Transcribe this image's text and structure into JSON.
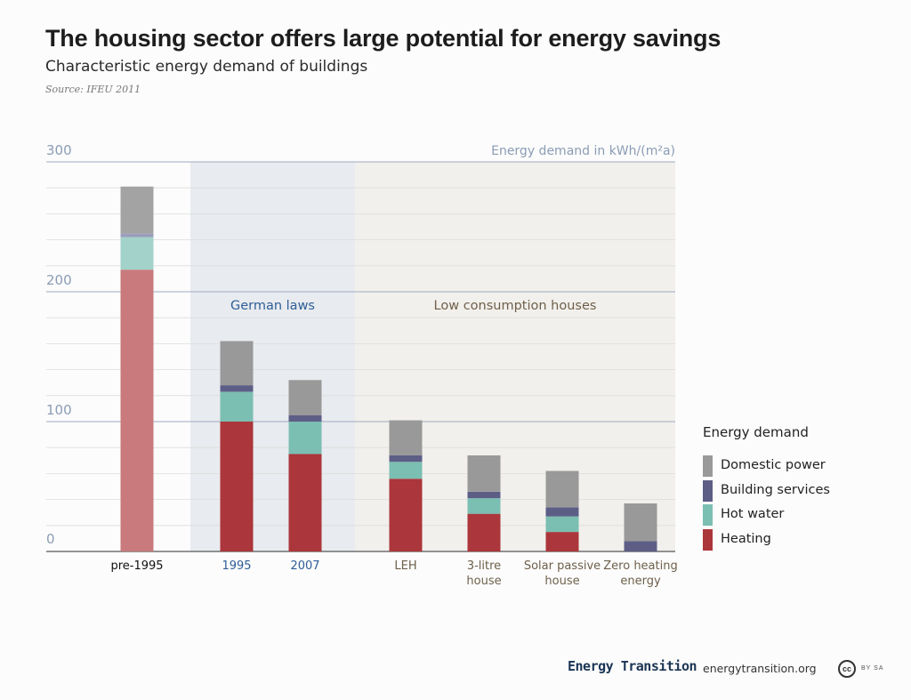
{
  "header": {
    "title": "The housing sector offers large potential for energy savings",
    "subtitle": "Characteristic energy demand of buildings",
    "source": "Source: IFEU 2011"
  },
  "chart_data": {
    "type": "bar",
    "stacked": true,
    "unit_label": "Energy demand in kWh/(m²a)",
    "y_ticks": [
      "0",
      "100",
      "200",
      "300"
    ],
    "ylim": [
      0,
      300
    ],
    "grid": true,
    "categories": [
      {
        "label_lines": [
          "pre-1995"
        ],
        "group": "none"
      },
      {
        "label_lines": [
          "1995"
        ],
        "group": "laws"
      },
      {
        "label_lines": [
          "2007"
        ],
        "group": "laws"
      },
      {
        "label_lines": [
          "LEH"
        ],
        "group": "low"
      },
      {
        "label_lines": [
          "3-litre",
          "house"
        ],
        "group": "low"
      },
      {
        "label_lines": [
          "Solar passive",
          "house"
        ],
        "group": "low"
      },
      {
        "label_lines": [
          "Zero heating",
          "energy"
        ],
        "group": "low"
      }
    ],
    "regions": [
      {
        "key": "laws",
        "label": "German laws",
        "from": 1,
        "to": 2,
        "color": "#e8ebef",
        "label_color": "#2f5d96"
      },
      {
        "key": "low",
        "label": "Low consumption houses",
        "from": 3,
        "to": 6,
        "color": "#f2f0ec",
        "label_color": "#6e5f4b"
      }
    ],
    "series": [
      {
        "name": "Heating",
        "color": "#ab363b",
        "faded_color": "#c87a7d",
        "values": [
          217,
          100,
          75,
          56,
          29,
          15,
          0
        ]
      },
      {
        "name": "Hot water",
        "color": "#7bbeb2",
        "faded_color": "#a3d2ca",
        "values": [
          25,
          23,
          25,
          13,
          12,
          12,
          0
        ]
      },
      {
        "name": "Building services",
        "color": "#5d5e86",
        "faded_color": "#9c9dba",
        "values": [
          3,
          5,
          5,
          5,
          5,
          7,
          8
        ]
      },
      {
        "name": "Domestic power",
        "color": "#999999",
        "faded_color": "#a3a3a3",
        "values": [
          36,
          34,
          27,
          27,
          28,
          28,
          29
        ]
      }
    ],
    "faded_category": 0,
    "legend": {
      "title": "Energy demand",
      "position": "right",
      "items": [
        "Domestic power",
        "Building services",
        "Hot water",
        "Heating"
      ]
    },
    "colors": {
      "axis_label": "#8c9cb6",
      "grid_major": "#9fa9c1",
      "grid_minor": "#dcdcdc",
      "tick_first": "#111111",
      "tick_laws": "#2f5d96",
      "tick_low": "#6e5f4b"
    }
  },
  "footer": {
    "brand": "Energy Transition",
    "url": "energytransition.org",
    "cc_icon_text": "cc",
    "license": "BY SA"
  }
}
